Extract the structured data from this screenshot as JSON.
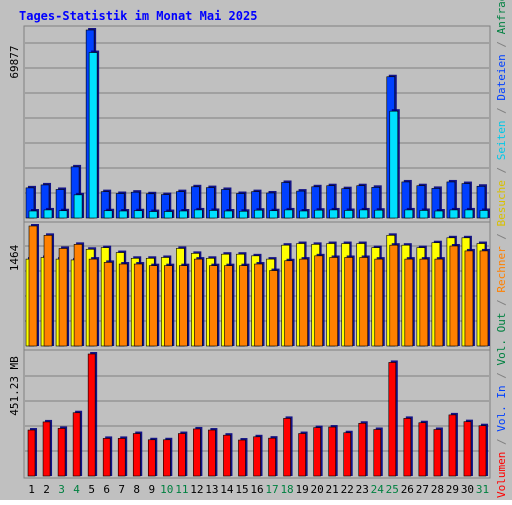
{
  "title": "Tages-Statistik im Monat Mai 2025",
  "colors": {
    "background": "#c0c0c0",
    "title": "#0000ff",
    "anfragen": "#008040",
    "dateien": "#0040ff",
    "seiten": "#00e0ff",
    "besuche": "#ffff00",
    "rechner": "#ff8000",
    "volume": "#ff0000",
    "weekend_label": "#008040",
    "weekday_label": "#000000"
  },
  "chart_data": [
    {
      "type": "bar",
      "title": "Tages-Statistik im Monat Mai 2025",
      "panel": "top",
      "ymax_label": "69877",
      "ylim": [
        0,
        69877
      ],
      "categories": [
        "1",
        "2",
        "3",
        "4",
        "5",
        "6",
        "7",
        "8",
        "9",
        "10",
        "11",
        "12",
        "13",
        "14",
        "15",
        "16",
        "17",
        "18",
        "19",
        "20",
        "21",
        "22",
        "23",
        "24",
        "25",
        "26",
        "27",
        "28",
        "29",
        "30",
        "31"
      ],
      "weekend_days": [
        "3",
        "4",
        "10",
        "11",
        "17",
        "18",
        "24",
        "25",
        "31"
      ],
      "series": [
        {
          "name": "Anfragen",
          "color": "#0040ff",
          "values": [
            11200,
            12300,
            10600,
            19000,
            69877,
            9800,
            9100,
            9600,
            9000,
            8700,
            9800,
            11600,
            11300,
            10600,
            9100,
            9800,
            9300,
            13200,
            10000,
            11600,
            12000,
            10900,
            12000,
            11400,
            52500,
            13400,
            12000,
            11000,
            13400,
            12800,
            11800
          ]
        },
        {
          "name": "Seiten",
          "color": "#00e0ff",
          "values": [
            2600,
            3000,
            2700,
            8600,
            61500,
            2700,
            2600,
            2700,
            2400,
            2400,
            2600,
            3000,
            2800,
            2600,
            2500,
            2900,
            2700,
            3000,
            2600,
            2900,
            3000,
            2800,
            3000,
            2900,
            39700,
            3000,
            2800,
            2600,
            3000,
            3000,
            2800
          ]
        }
      ]
    },
    {
      "type": "bar",
      "panel": "middle",
      "ymax_label": "1464",
      "ylim": [
        0,
        1464
      ],
      "categories": [
        "1",
        "2",
        "3",
        "4",
        "5",
        "6",
        "7",
        "8",
        "9",
        "10",
        "11",
        "12",
        "13",
        "14",
        "15",
        "16",
        "17",
        "18",
        "19",
        "20",
        "21",
        "22",
        "23",
        "24",
        "25",
        "26",
        "27",
        "28",
        "29",
        "30",
        "31"
      ],
      "series": [
        {
          "name": "Besuche",
          "color": "#ffff00",
          "values": [
            1060,
            1080,
            1060,
            1050,
            1180,
            1200,
            1140,
            1070,
            1070,
            1080,
            1190,
            1130,
            1070,
            1120,
            1120,
            1100,
            1060,
            1230,
            1250,
            1240,
            1250,
            1250,
            1250,
            1200,
            1350,
            1230,
            1200,
            1260,
            1320,
            1320,
            1250
          ]
        },
        {
          "name": "Rechner",
          "color": "#ff8000",
          "values": [
            1464,
            1350,
            1190,
            1240,
            1060,
            1020,
            1000,
            1000,
            980,
            980,
            980,
            1060,
            980,
            980,
            980,
            1000,
            920,
            1040,
            1060,
            1100,
            1080,
            1080,
            1080,
            1060,
            1230,
            1060,
            1060,
            1060,
            1220,
            1160,
            1160
          ]
        }
      ]
    },
    {
      "type": "bar",
      "panel": "bottom",
      "ymax_label": "451.23 MB",
      "ylim": [
        0,
        451.23
      ],
      "categories": [
        "1",
        "2",
        "3",
        "4",
        "5",
        "6",
        "7",
        "8",
        "9",
        "10",
        "11",
        "12",
        "13",
        "14",
        "15",
        "16",
        "17",
        "18",
        "19",
        "20",
        "21",
        "22",
        "23",
        "24",
        "25",
        "26",
        "27",
        "28",
        "29",
        "30",
        "31"
      ],
      "series": [
        {
          "name": "Vol. In",
          "color": "#ff0000",
          "values": [
            170,
            200,
            176,
            234,
            451.23,
            139,
            139,
            157,
            134,
            134,
            157,
            174,
            170,
            151,
            133,
            145,
            140,
            213,
            157,
            179,
            181,
            160,
            195,
            172,
            420,
            213,
            197,
            172,
            226,
            201,
            186
          ]
        }
      ]
    }
  ],
  "right_legend": [
    {
      "text": "Volumen",
      "color": "#ff0000"
    },
    {
      "text": " / ",
      "color": "#808080"
    },
    {
      "text": "Vol. In",
      "color": "#0040ff"
    },
    {
      "text": " / ",
      "color": "#808080"
    },
    {
      "text": "Vol. Out",
      "color": "#008040"
    },
    {
      "text": " / ",
      "color": "#808080"
    },
    {
      "text": "Rechner",
      "color": "#ff8000"
    },
    {
      "text": " / ",
      "color": "#808080"
    },
    {
      "text": "Besuche",
      "color": "#d8c000"
    },
    {
      "text": " / ",
      "color": "#808080"
    },
    {
      "text": "Seiten",
      "color": "#00c8e8"
    },
    {
      "text": " / ",
      "color": "#808080"
    },
    {
      "text": "Dateien",
      "color": "#0040ff"
    },
    {
      "text": " / ",
      "color": "#808080"
    },
    {
      "text": "Anfragen",
      "color": "#008040"
    }
  ]
}
